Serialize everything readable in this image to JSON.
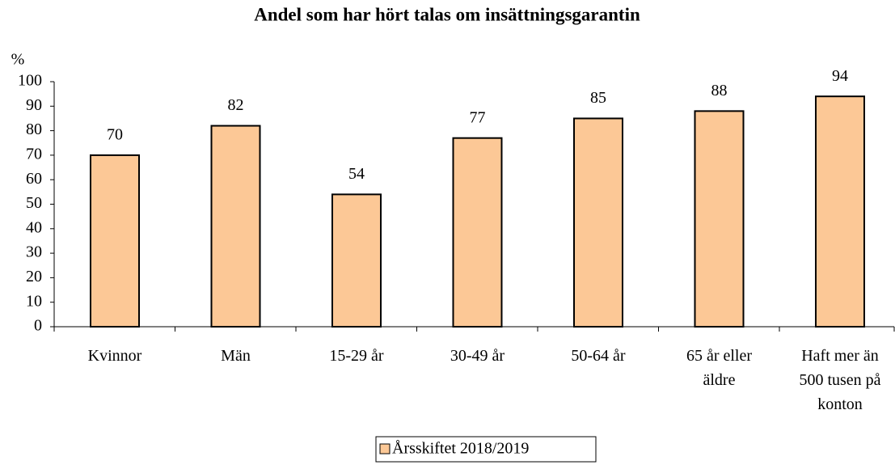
{
  "chart_data": {
    "type": "bar",
    "title": "Andel som har hört talas om insättningsgarantin",
    "y_label": "%",
    "categories": [
      "Kvinnor",
      "Män",
      "15-29 år",
      "30-49 år",
      "50-64 år",
      "65 år eller\näldre",
      "Haft mer än\n500 tusen på\nkonton"
    ],
    "series": [
      {
        "name": "Årsskiftet 2018/2019",
        "color": "#fcc896",
        "values": [
          70,
          82,
          54,
          77,
          85,
          88,
          94
        ]
      }
    ],
    "ylim": [
      0,
      100
    ],
    "yticks": [
      0,
      10,
      20,
      30,
      40,
      50,
      60,
      70,
      80,
      90,
      100
    ],
    "legend": "bottom"
  }
}
